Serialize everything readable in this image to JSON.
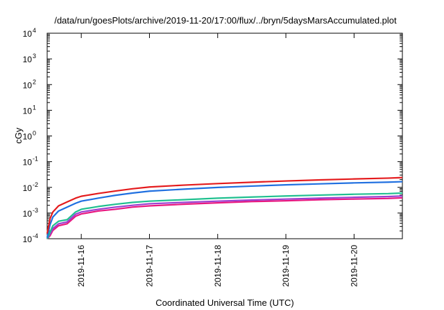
{
  "chart_data": {
    "type": "line",
    "title": "/data/run/goesPlots/archive/2019-11-20/17:00/flux/../bryn/5daysMarsAccumulated.plot",
    "xlabel": "Coordinated Universal Time (UTC)",
    "ylabel": "cGy",
    "x_type": "date",
    "xlim": [
      "2019-11-15T12:00",
      "2019-11-20T17:00"
    ],
    "ylim": [
      0.0001,
      10000
    ],
    "y_scale": "log",
    "x_ticks": [
      "2019-11-16",
      "2019-11-17",
      "2019-11-18",
      "2019-11-19",
      "2019-11-20"
    ],
    "y_ticks": [
      {
        "base": "10",
        "exp": "4"
      },
      {
        "base": "10",
        "exp": "3"
      },
      {
        "base": "10",
        "exp": "2"
      },
      {
        "base": "10",
        "exp": "1"
      },
      {
        "base": "10",
        "exp": "0"
      },
      {
        "base": "10",
        "exp": "-1"
      },
      {
        "base": "10",
        "exp": "-2"
      },
      {
        "base": "10",
        "exp": "-3"
      },
      {
        "base": "10",
        "exp": "-4"
      }
    ],
    "grid": false,
    "legend": "none",
    "series": [
      {
        "color": "#e41a1c",
        "x": [
          "2019-11-15T12:00",
          "2019-11-15T13:00",
          "2019-11-15T14:00",
          "2019-11-15T16:00",
          "2019-11-15T19:00",
          "2019-11-15T22:00",
          "2019-11-16T00:00",
          "2019-11-16T06:00",
          "2019-11-16T12:00",
          "2019-11-16T18:00",
          "2019-11-17T00:00",
          "2019-11-17T12:00",
          "2019-11-18T00:00",
          "2019-11-18T12:00",
          "2019-11-19T00:00",
          "2019-11-19T12:00",
          "2019-11-20T00:00",
          "2019-11-20T12:00",
          "2019-11-20T17:00"
        ],
        "y": [
          0.00016,
          0.0006,
          0.0011,
          0.0019,
          0.0027,
          0.0038,
          0.0045,
          0.0058,
          0.0072,
          0.0088,
          0.0103,
          0.0122,
          0.014,
          0.0158,
          0.0177,
          0.0195,
          0.0212,
          0.0228,
          0.024
        ]
      },
      {
        "color": "#1f6fe0",
        "x": [
          "2019-11-15T12:00",
          "2019-11-15T13:00",
          "2019-11-15T14:00",
          "2019-11-15T16:00",
          "2019-11-15T19:00",
          "2019-11-15T22:00",
          "2019-11-16T00:00",
          "2019-11-16T06:00",
          "2019-11-16T12:00",
          "2019-11-16T18:00",
          "2019-11-17T00:00",
          "2019-11-17T12:00",
          "2019-11-18T00:00",
          "2019-11-18T12:00",
          "2019-11-19T00:00",
          "2019-11-19T12:00",
          "2019-11-20T00:00",
          "2019-11-20T12:00",
          "2019-11-20T17:00"
        ],
        "y": [
          0.00011,
          0.00035,
          0.0007,
          0.0012,
          0.0017,
          0.0024,
          0.0029,
          0.0038,
          0.0049,
          0.006,
          0.0071,
          0.0085,
          0.0099,
          0.0112,
          0.0125,
          0.0137,
          0.0149,
          0.0159,
          0.0166
        ]
      },
      {
        "color": "#1fbf8f",
        "x": [
          "2019-11-15T12:00",
          "2019-11-15T13:00",
          "2019-11-15T14:00",
          "2019-11-15T16:00",
          "2019-11-15T19:00",
          "2019-11-15T22:00",
          "2019-11-16T00:00",
          "2019-11-16T06:00",
          "2019-11-16T12:00",
          "2019-11-16T18:00",
          "2019-11-17T00:00",
          "2019-11-17T12:00",
          "2019-11-18T00:00",
          "2019-11-18T12:00",
          "2019-11-19T00:00",
          "2019-11-19T12:00",
          "2019-11-20T00:00",
          "2019-11-20T12:00",
          "2019-11-20T17:00"
        ],
        "y": [
          0.0001,
          0.00018,
          0.00032,
          0.00048,
          0.00055,
          0.0011,
          0.0014,
          0.0018,
          0.0022,
          0.0026,
          0.0029,
          0.0033,
          0.0038,
          0.0042,
          0.0046,
          0.005,
          0.0054,
          0.0057,
          0.006
        ]
      },
      {
        "color": "#9b3fd0",
        "x": [
          "2019-11-15T12:00",
          "2019-11-15T13:00",
          "2019-11-15T14:00",
          "2019-11-15T16:00",
          "2019-11-15T19:00",
          "2019-11-15T22:00",
          "2019-11-16T00:00",
          "2019-11-16T06:00",
          "2019-11-16T12:00",
          "2019-11-16T18:00",
          "2019-11-17T00:00",
          "2019-11-17T12:00",
          "2019-11-18T00:00",
          "2019-11-18T12:00",
          "2019-11-19T00:00",
          "2019-11-19T12:00",
          "2019-11-20T00:00",
          "2019-11-20T12:00",
          "2019-11-20T17:00"
        ],
        "y": [
          0.0001,
          0.00015,
          0.00025,
          0.00038,
          0.00045,
          0.0009,
          0.0011,
          0.0014,
          0.0017,
          0.002,
          0.0023,
          0.0026,
          0.0029,
          0.0032,
          0.0035,
          0.0038,
          0.0041,
          0.0044,
          0.0046
        ]
      },
      {
        "color": "#e8177f",
        "x": [
          "2019-11-15T12:00",
          "2019-11-15T13:00",
          "2019-11-15T14:00",
          "2019-11-15T16:00",
          "2019-11-15T19:00",
          "2019-11-15T22:00",
          "2019-11-16T00:00",
          "2019-11-16T06:00",
          "2019-11-16T12:00",
          "2019-11-16T18:00",
          "2019-11-17T00:00",
          "2019-11-17T12:00",
          "2019-11-18T00:00",
          "2019-11-18T12:00",
          "2019-11-19T00:00",
          "2019-11-19T12:00",
          "2019-11-20T00:00",
          "2019-11-20T12:00",
          "2019-11-20T17:00"
        ],
        "y": [
          0.0001,
          0.00013,
          0.00021,
          0.00032,
          0.00038,
          0.00075,
          0.00092,
          0.0012,
          0.0014,
          0.0017,
          0.0019,
          0.0022,
          0.0025,
          0.0028,
          0.003,
          0.0033,
          0.0035,
          0.0037,
          0.0039
        ]
      }
    ]
  }
}
